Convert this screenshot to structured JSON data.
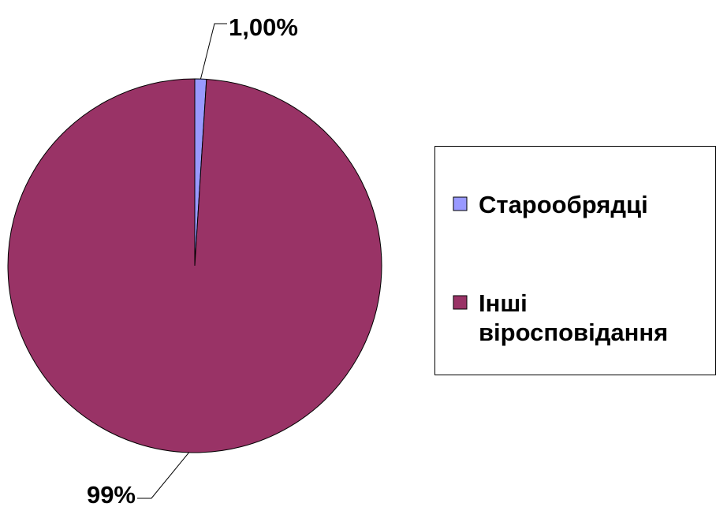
{
  "chart_data": {
    "type": "pie",
    "categories": [
      "Старообрядці",
      "Інші віросповідання"
    ],
    "values": [
      1,
      99
    ],
    "value_labels": [
      "1,00%",
      "99%"
    ],
    "colors": [
      "#9999ff",
      "#993366"
    ],
    "legend": "right"
  }
}
